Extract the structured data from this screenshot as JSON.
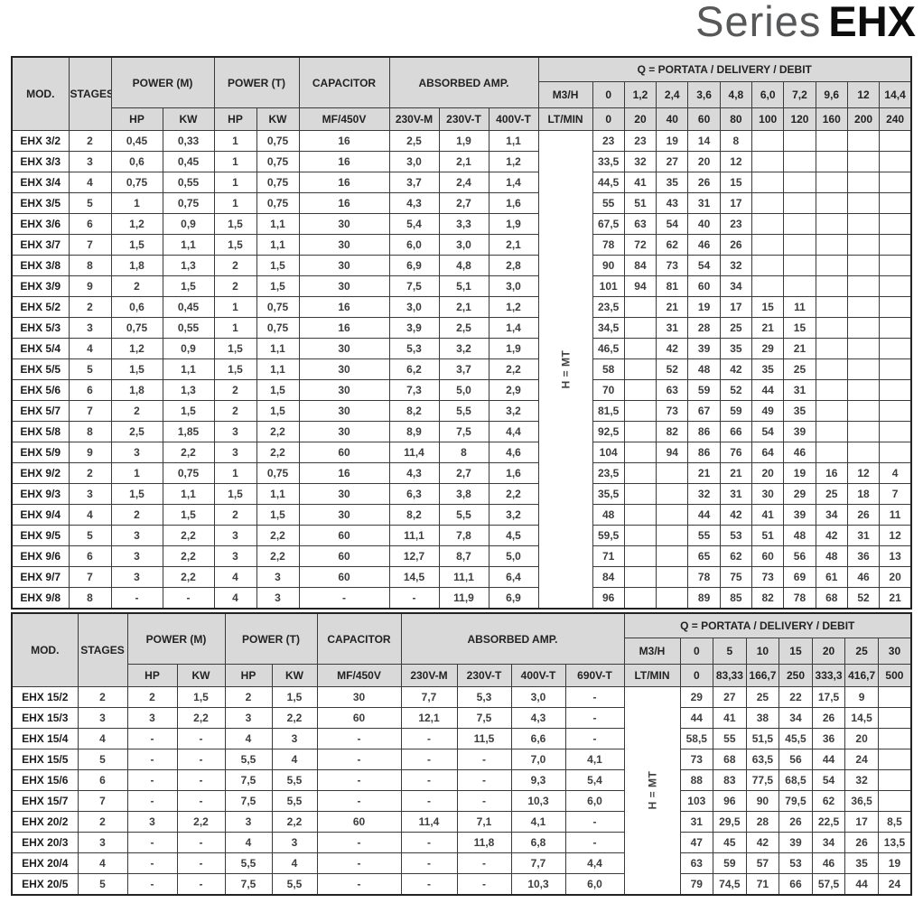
{
  "title": {
    "series": "Series",
    "model": "EHX"
  },
  "colors": {
    "header_bg": "#d9d9d9",
    "border": "#3a3a3a",
    "title_gray": "#57585a",
    "text": "#3d3d3d"
  },
  "table1": {
    "headers": {
      "mod": "MOD.",
      "stages": "STAGES",
      "power_m": "POWER (M)",
      "power_t": "POWER (T)",
      "capacitor": "CAPACITOR",
      "absorbed": "ABSORBED AMP.",
      "q_title": "Q = PORTATA / DELIVERY / DEBIT",
      "hp": "HP",
      "kw": "KW",
      "mf": "MF/450V",
      "amp_cols": [
        "230V-M",
        "230V-T",
        "400V-T"
      ],
      "m3h_label": "M3/H",
      "ltmin_label": "LT/MIN",
      "m3h": [
        "0",
        "1,2",
        "2,4",
        "3,6",
        "4,8",
        "6,0",
        "7,2",
        "9,6",
        "12",
        "14,4"
      ],
      "ltmin": [
        "0",
        "20",
        "40",
        "60",
        "80",
        "100",
        "120",
        "160",
        "200",
        "240"
      ],
      "h_mt": "H = MT"
    },
    "rows": [
      {
        "c": [
          "EHX 3/2",
          "2",
          "0,45",
          "0,33",
          "1",
          "0,75",
          "16",
          "2,5",
          "1,9",
          "1,1"
        ],
        "q": [
          "23",
          "23",
          "19",
          "14",
          "8",
          "",
          "",
          "",
          "",
          ""
        ]
      },
      {
        "c": [
          "EHX 3/3",
          "3",
          "0,6",
          "0,45",
          "1",
          "0,75",
          "16",
          "3,0",
          "2,1",
          "1,2"
        ],
        "q": [
          "33,5",
          "32",
          "27",
          "20",
          "12",
          "",
          "",
          "",
          "",
          ""
        ]
      },
      {
        "c": [
          "EHX 3/4",
          "4",
          "0,75",
          "0,55",
          "1",
          "0,75",
          "16",
          "3,7",
          "2,4",
          "1,4"
        ],
        "q": [
          "44,5",
          "41",
          "35",
          "26",
          "15",
          "",
          "",
          "",
          "",
          ""
        ]
      },
      {
        "c": [
          "EHX 3/5",
          "5",
          "1",
          "0,75",
          "1",
          "0,75",
          "16",
          "4,3",
          "2,7",
          "1,6"
        ],
        "q": [
          "55",
          "51",
          "43",
          "31",
          "17",
          "",
          "",
          "",
          "",
          ""
        ]
      },
      {
        "c": [
          "EHX 3/6",
          "6",
          "1,2",
          "0,9",
          "1,5",
          "1,1",
          "30",
          "5,4",
          "3,3",
          "1,9"
        ],
        "q": [
          "67,5",
          "63",
          "54",
          "40",
          "23",
          "",
          "",
          "",
          "",
          ""
        ]
      },
      {
        "c": [
          "EHX 3/7",
          "7",
          "1,5",
          "1,1",
          "1,5",
          "1,1",
          "30",
          "6,0",
          "3,0",
          "2,1"
        ],
        "q": [
          "78",
          "72",
          "62",
          "46",
          "26",
          "",
          "",
          "",
          "",
          ""
        ]
      },
      {
        "c": [
          "EHX 3/8",
          "8",
          "1,8",
          "1,3",
          "2",
          "1,5",
          "30",
          "6,9",
          "4,8",
          "2,8"
        ],
        "q": [
          "90",
          "84",
          "73",
          "54",
          "32",
          "",
          "",
          "",
          "",
          ""
        ]
      },
      {
        "c": [
          "EHX 3/9",
          "9",
          "2",
          "1,5",
          "2",
          "1,5",
          "30",
          "7,5",
          "5,1",
          "3,0"
        ],
        "q": [
          "101",
          "94",
          "81",
          "60",
          "34",
          "",
          "",
          "",
          "",
          ""
        ]
      },
      {
        "c": [
          "EHX 5/2",
          "2",
          "0,6",
          "0,45",
          "1",
          "0,75",
          "16",
          "3,0",
          "2,1",
          "1,2"
        ],
        "q": [
          "23,5",
          "",
          "21",
          "19",
          "17",
          "15",
          "11",
          "",
          "",
          ""
        ]
      },
      {
        "c": [
          "EHX 5/3",
          "3",
          "0,75",
          "0,55",
          "1",
          "0,75",
          "16",
          "3,9",
          "2,5",
          "1,4"
        ],
        "q": [
          "34,5",
          "",
          "31",
          "28",
          "25",
          "21",
          "15",
          "",
          "",
          ""
        ]
      },
      {
        "c": [
          "EHX 5/4",
          "4",
          "1,2",
          "0,9",
          "1,5",
          "1,1",
          "30",
          "5,3",
          "3,2",
          "1,9"
        ],
        "q": [
          "46,5",
          "",
          "42",
          "39",
          "35",
          "29",
          "21",
          "",
          "",
          ""
        ]
      },
      {
        "c": [
          "EHX 5/5",
          "5",
          "1,5",
          "1,1",
          "1,5",
          "1,1",
          "30",
          "6,2",
          "3,7",
          "2,2"
        ],
        "q": [
          "58",
          "",
          "52",
          "48",
          "42",
          "35",
          "25",
          "",
          "",
          ""
        ]
      },
      {
        "c": [
          "EHX 5/6",
          "6",
          "1,8",
          "1,3",
          "2",
          "1,5",
          "30",
          "7,3",
          "5,0",
          "2,9"
        ],
        "q": [
          "70",
          "",
          "63",
          "59",
          "52",
          "44",
          "31",
          "",
          "",
          ""
        ]
      },
      {
        "c": [
          "EHX 5/7",
          "7",
          "2",
          "1,5",
          "2",
          "1,5",
          "30",
          "8,2",
          "5,5",
          "3,2"
        ],
        "q": [
          "81,5",
          "",
          "73",
          "67",
          "59",
          "49",
          "35",
          "",
          "",
          ""
        ]
      },
      {
        "c": [
          "EHX 5/8",
          "8",
          "2,5",
          "1,85",
          "3",
          "2,2",
          "30",
          "8,9",
          "7,5",
          "4,4"
        ],
        "q": [
          "92,5",
          "",
          "82",
          "86",
          "66",
          "54",
          "39",
          "",
          "",
          ""
        ]
      },
      {
        "c": [
          "EHX 5/9",
          "9",
          "3",
          "2,2",
          "3",
          "2,2",
          "60",
          "11,4",
          "8",
          "4,6"
        ],
        "q": [
          "104",
          "",
          "94",
          "86",
          "76",
          "64",
          "46",
          "",
          "",
          ""
        ]
      },
      {
        "c": [
          "EHX 9/2",
          "2",
          "1",
          "0,75",
          "1",
          "0,75",
          "16",
          "4,3",
          "2,7",
          "1,6"
        ],
        "q": [
          "23,5",
          "",
          "",
          "21",
          "21",
          "20",
          "19",
          "16",
          "12",
          "4"
        ]
      },
      {
        "c": [
          "EHX 9/3",
          "3",
          "1,5",
          "1,1",
          "1,5",
          "1,1",
          "30",
          "6,3",
          "3,8",
          "2,2"
        ],
        "q": [
          "35,5",
          "",
          "",
          "32",
          "31",
          "30",
          "29",
          "25",
          "18",
          "7"
        ]
      },
      {
        "c": [
          "EHX 9/4",
          "4",
          "2",
          "1,5",
          "2",
          "1,5",
          "30",
          "8,2",
          "5,5",
          "3,2"
        ],
        "q": [
          "48",
          "",
          "",
          "44",
          "42",
          "41",
          "39",
          "34",
          "26",
          "11"
        ]
      },
      {
        "c": [
          "EHX 9/5",
          "5",
          "3",
          "2,2",
          "3",
          "2,2",
          "60",
          "11,1",
          "7,8",
          "4,5"
        ],
        "q": [
          "59,5",
          "",
          "",
          "55",
          "53",
          "51",
          "48",
          "42",
          "31",
          "12"
        ]
      },
      {
        "c": [
          "EHX 9/6",
          "6",
          "3",
          "2,2",
          "3",
          "2,2",
          "60",
          "12,7",
          "8,7",
          "5,0"
        ],
        "q": [
          "71",
          "",
          "",
          "65",
          "62",
          "60",
          "56",
          "48",
          "36",
          "13"
        ]
      },
      {
        "c": [
          "EHX 9/7",
          "7",
          "3",
          "2,2",
          "4",
          "3",
          "60",
          "14,5",
          "11,1",
          "6,4"
        ],
        "q": [
          "84",
          "",
          "",
          "78",
          "75",
          "73",
          "69",
          "61",
          "46",
          "20"
        ]
      },
      {
        "c": [
          "EHX 9/8",
          "8",
          "-",
          "-",
          "4",
          "3",
          "-",
          "-",
          "11,9",
          "6,9"
        ],
        "q": [
          "96",
          "",
          "",
          "89",
          "85",
          "82",
          "78",
          "68",
          "52",
          "21"
        ]
      }
    ]
  },
  "table2": {
    "headers": {
      "mod": "MOD.",
      "stages": "STAGES",
      "power_m": "POWER (M)",
      "power_t": "POWER (T)",
      "capacitor": "CAPACITOR",
      "absorbed": "ABSORBED AMP.",
      "q_title": "Q = PORTATA / DELIVERY / DEBIT",
      "hp": "HP",
      "kw": "KW",
      "mf": "MF/450V",
      "amp_cols": [
        "230V-M",
        "230V-T",
        "400V-T",
        "690V-T"
      ],
      "m3h_label": "M3/H",
      "ltmin_label": "LT/MIN",
      "m3h": [
        "0",
        "5",
        "10",
        "15",
        "20",
        "25",
        "30"
      ],
      "ltmin": [
        "0",
        "83,33",
        "166,7",
        "250",
        "333,3",
        "416,7",
        "500"
      ],
      "h_mt": "H = MT"
    },
    "rows": [
      {
        "c": [
          "EHX 15/2",
          "2",
          "2",
          "1,5",
          "2",
          "1,5",
          "30",
          "7,7",
          "5,3",
          "3,0",
          "-"
        ],
        "q": [
          "29",
          "27",
          "25",
          "22",
          "17,5",
          "9",
          ""
        ]
      },
      {
        "c": [
          "EHX 15/3",
          "3",
          "3",
          "2,2",
          "3",
          "2,2",
          "60",
          "12,1",
          "7,5",
          "4,3",
          "-"
        ],
        "q": [
          "44",
          "41",
          "38",
          "34",
          "26",
          "14,5",
          ""
        ]
      },
      {
        "c": [
          "EHX 15/4",
          "4",
          "-",
          "-",
          "4",
          "3",
          "-",
          "-",
          "11,5",
          "6,6",
          "-"
        ],
        "q": [
          "58,5",
          "55",
          "51,5",
          "45,5",
          "36",
          "20",
          ""
        ]
      },
      {
        "c": [
          "EHX 15/5",
          "5",
          "-",
          "-",
          "5,5",
          "4",
          "-",
          "-",
          "-",
          "7,0",
          "4,1"
        ],
        "q": [
          "73",
          "68",
          "63,5",
          "56",
          "44",
          "24",
          ""
        ]
      },
      {
        "c": [
          "EHX 15/6",
          "6",
          "-",
          "-",
          "7,5",
          "5,5",
          "-",
          "-",
          "-",
          "9,3",
          "5,4"
        ],
        "q": [
          "88",
          "83",
          "77,5",
          "68,5",
          "54",
          "32",
          ""
        ]
      },
      {
        "c": [
          "EHX 15/7",
          "7",
          "-",
          "-",
          "7,5",
          "5,5",
          "-",
          "-",
          "-",
          "10,3",
          "6,0"
        ],
        "q": [
          "103",
          "96",
          "90",
          "79,5",
          "62",
          "36,5",
          ""
        ]
      },
      {
        "c": [
          "EHX 20/2",
          "2",
          "3",
          "2,2",
          "3",
          "2,2",
          "60",
          "11,4",
          "7,1",
          "4,1",
          "-"
        ],
        "q": [
          "31",
          "29,5",
          "28",
          "26",
          "22,5",
          "17",
          "8,5"
        ]
      },
      {
        "c": [
          "EHX 20/3",
          "3",
          "-",
          "-",
          "4",
          "3",
          "-",
          "-",
          "11,8",
          "6,8",
          "-"
        ],
        "q": [
          "47",
          "45",
          "42",
          "39",
          "34",
          "26",
          "13,5"
        ]
      },
      {
        "c": [
          "EHX 20/4",
          "4",
          "-",
          "-",
          "5,5",
          "4",
          "-",
          "-",
          "-",
          "7,7",
          "4,4"
        ],
        "q": [
          "63",
          "59",
          "57",
          "53",
          "46",
          "35",
          "19"
        ]
      },
      {
        "c": [
          "EHX 20/5",
          "5",
          "-",
          "-",
          "7,5",
          "5,5",
          "-",
          "-",
          "-",
          "10,3",
          "6,0"
        ],
        "q": [
          "79",
          "74,5",
          "71",
          "66",
          "57,5",
          "44",
          "24"
        ]
      }
    ]
  }
}
